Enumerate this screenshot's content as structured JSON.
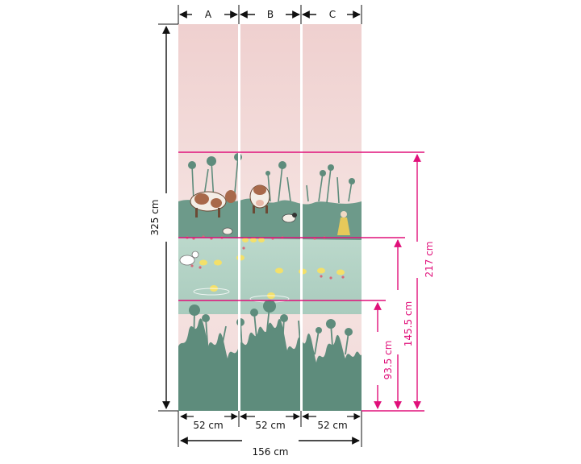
{
  "panels": [
    "A",
    "B",
    "C"
  ],
  "panel_widths": [
    "52 cm",
    "52 cm",
    "52 cm"
  ],
  "total_width": "156 cm",
  "total_height": "325 cm",
  "heights": [
    "217 cm",
    "145.5 cm",
    "93.5 cm"
  ],
  "colors": {
    "sky_top": "#f0cfcf",
    "sky_bottom": "#f7e6e4",
    "meadow": "#5e8c7c",
    "pond": "#b7d5c8",
    "dimension_line": "#111111",
    "marker_line": "#e0107a"
  }
}
